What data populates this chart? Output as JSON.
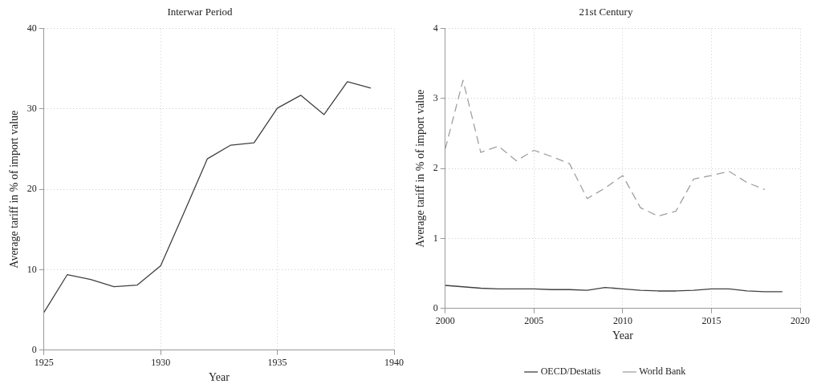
{
  "chart_data": [
    {
      "type": "line",
      "title": "Interwar Period",
      "xlabel": "Year",
      "ylabel": "Average tariff in % of import value",
      "x": [
        1925,
        1926,
        1927,
        1928,
        1929,
        1930,
        1931,
        1932,
        1933,
        1934,
        1935,
        1936,
        1937,
        1938,
        1939
      ],
      "series": [
        {
          "color": "#404040",
          "line_style": "solid",
          "values": [
            4.7,
            9.4,
            8.8,
            7.9,
            8.1,
            10.5,
            17.1,
            23.8,
            25.5,
            25.8,
            30.1,
            31.7,
            29.3,
            33.4,
            32.6
          ]
        }
      ],
      "xlim": [
        1925,
        1940
      ],
      "xticks": [
        1925,
        1930,
        1935,
        1940
      ],
      "ylim": [
        0,
        40
      ],
      "yticks": [
        0,
        10,
        20,
        30,
        40
      ],
      "grid": true,
      "legend": false
    },
    {
      "type": "line",
      "title": "21st Century",
      "xlabel": "Year",
      "ylabel": "Average tariff in % of import value",
      "x": [
        2000,
        2001,
        2002,
        2003,
        2004,
        2005,
        2006,
        2007,
        2008,
        2009,
        2010,
        2011,
        2012,
        2013,
        2014,
        2015,
        2016,
        2017,
        2018,
        2019
      ],
      "series": [
        {
          "name": "OECD/Destatis",
          "color": "#404040",
          "line_style": "solid",
          "values": [
            0.33,
            0.31,
            0.29,
            0.28,
            0.28,
            0.28,
            0.27,
            0.27,
            0.26,
            0.3,
            0.28,
            0.26,
            0.25,
            0.25,
            0.26,
            0.28,
            0.28,
            0.25,
            0.24,
            0.24
          ]
        },
        {
          "name": "World Bank",
          "color": "#a0a0a0",
          "line_style": "dashed",
          "values": [
            2.28,
            3.26,
            2.23,
            2.32,
            2.11,
            2.26,
            2.17,
            2.07,
            1.57,
            1.72,
            1.9,
            1.44,
            1.32,
            1.39,
            1.85,
            1.9,
            1.96,
            1.8,
            1.7,
            null
          ]
        }
      ],
      "xlim": [
        2000,
        2020
      ],
      "xticks": [
        2000,
        2005,
        2010,
        2015,
        2020
      ],
      "ylim": [
        0,
        4
      ],
      "yticks": [
        0,
        1,
        2,
        3,
        4
      ],
      "grid": true,
      "legend": "bottom"
    }
  ]
}
